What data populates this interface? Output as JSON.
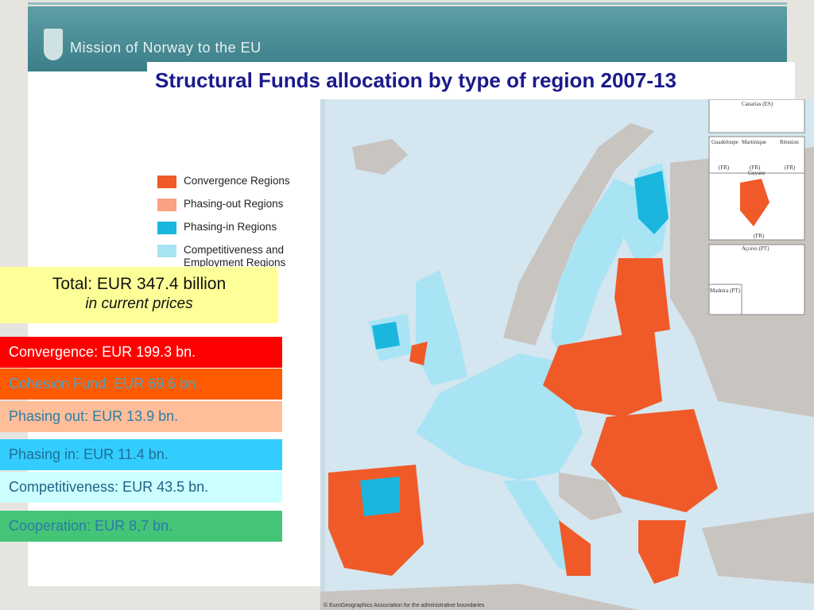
{
  "header": {
    "organization": "Mission of Norway to the EU",
    "title": "Structural Funds allocation by type of region 2007-13"
  },
  "legend": [
    {
      "label": "Convergence Regions",
      "color": "#f05a28"
    },
    {
      "label": "Phasing-out Regions",
      "color": "#f9a183"
    },
    {
      "label": "Phasing-in Regions",
      "color": "#1ab6dd"
    },
    {
      "label": "Competitiveness and Employment Regions",
      "color": "#a9e4f5"
    }
  ],
  "total": {
    "line1": "Total: EUR 347.4 billion",
    "line2": "in current prices"
  },
  "allocations": [
    {
      "label": "Convergence: EUR 199.3 bn.",
      "background": "#ff0000",
      "text_color": "#ffffff"
    },
    {
      "label": "Cohesion Fund: EUR 69.6 bn.",
      "background": "#ff5a00",
      "text_color": "#4aa3c9"
    },
    {
      "label": "Phasing out: EUR 13.9 bn.",
      "background": "#ffbd9a",
      "text_color": "#2c7fa5"
    },
    {
      "label": "Phasing in: EUR 11.4 bn.",
      "background": "#33ccff",
      "text_color": "#1e6f96"
    },
    {
      "label": "Competitiveness: EUR 43.5 bn.",
      "background": "#ccffff",
      "text_color": "#1f5f86"
    },
    {
      "label": "Cooperation: EUR 8,7 bn.",
      "background": "#44c477",
      "text_color": "#2b7ba6"
    }
  ],
  "map": {
    "insets": [
      "Canarias (ES)",
      "Guadeloupe",
      "Martinique",
      "Réunion",
      "(FR)",
      "(FR)",
      "(FR)",
      "Guyane",
      "(FR)",
      "Açores (PT)",
      "Madeira (PT)"
    ],
    "credit": "© EuroGeographics Association for the administrative boundaries"
  }
}
